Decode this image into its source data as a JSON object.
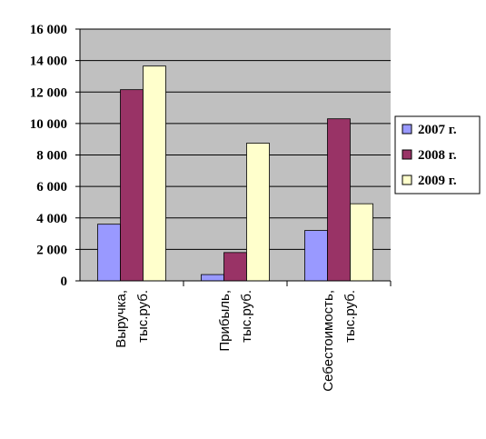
{
  "chart_data": {
    "type": "bar",
    "title": "",
    "xlabel": "",
    "ylabel": "",
    "categories": [
      [
        "Выручка,",
        "тыс.руб."
      ],
      [
        "Прибыль,",
        "тыс.руб."
      ],
      [
        "Себестоимость,",
        "тыс.руб."
      ]
    ],
    "series": [
      {
        "name": "2007 г.",
        "color": "#9999ff",
        "values": [
          3600,
          400,
          3200
        ]
      },
      {
        "name": "2008 г.",
        "color": "#993366",
        "values": [
          12150,
          1800,
          10300
        ]
      },
      {
        "name": "2009 г.",
        "color": "#ffffcc",
        "values": [
          13650,
          8750,
          4900
        ]
      }
    ],
    "ylim": [
      0,
      16000
    ],
    "yticks": [
      "0",
      "2 000",
      "4 000",
      "6 000",
      "8 000",
      "10 000",
      "12 000",
      "14 000",
      "16 000"
    ],
    "plot_background": "#c0c0c0",
    "grid": true,
    "legend": "right"
  }
}
